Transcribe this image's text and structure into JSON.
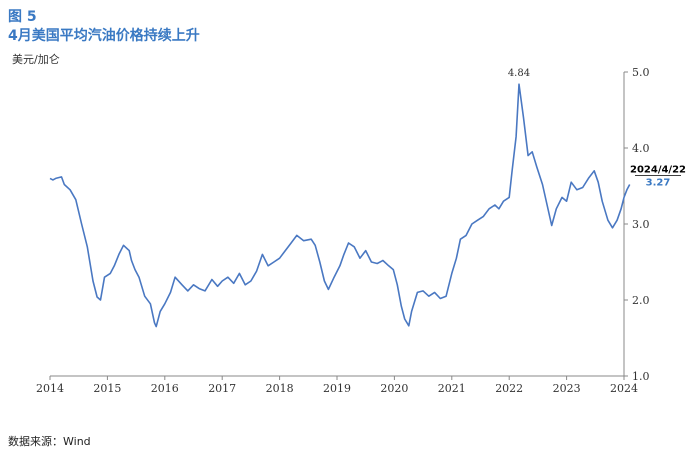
{
  "header": {
    "figure_label": "图 5",
    "title": "4月美国平均汽油价格持续上升",
    "unit": "美元/加仑"
  },
  "footer": {
    "source": "数据来源：Wind"
  },
  "colors": {
    "title": "#3a79c3",
    "line": "#4a78c2",
    "axis": "#888888"
  },
  "chart_data": {
    "type": "line",
    "title": "4月美国平均汽油价格持续上升",
    "xlabel": "",
    "ylabel": "美元/加仑",
    "xlim": [
      2014,
      2024
    ],
    "ylim": [
      1.0,
      5.0
    ],
    "x_ticks": [
      "2014",
      "2015",
      "2016",
      "2017",
      "2018",
      "2019",
      "2020",
      "2021",
      "2022",
      "2023",
      "2024"
    ],
    "y_ticks": [
      "1.0",
      "2.0",
      "3.0",
      "4.0",
      "5.0"
    ],
    "y_axis_position": "right",
    "grid": false,
    "legend": "none",
    "annotations": [
      {
        "text": "4.84",
        "x": 2022.17,
        "y": 4.84
      },
      {
        "date": "2024/4/22",
        "value": "3.27"
      }
    ],
    "series": [
      {
        "values": [
          [
            2014.0,
            3.6
          ],
          [
            2014.05,
            3.58
          ],
          [
            2014.1,
            3.6
          ],
          [
            2014.2,
            3.62
          ],
          [
            2014.25,
            3.52
          ],
          [
            2014.35,
            3.45
          ],
          [
            2014.45,
            3.32
          ],
          [
            2014.55,
            3.0
          ],
          [
            2014.65,
            2.7
          ],
          [
            2014.75,
            2.25
          ],
          [
            2014.82,
            2.04
          ],
          [
            2014.88,
            2.0
          ],
          [
            2014.95,
            2.3
          ],
          [
            2015.05,
            2.35
          ],
          [
            2015.12,
            2.45
          ],
          [
            2015.2,
            2.6
          ],
          [
            2015.28,
            2.72
          ],
          [
            2015.38,
            2.65
          ],
          [
            2015.42,
            2.52
          ],
          [
            2015.48,
            2.4
          ],
          [
            2015.55,
            2.3
          ],
          [
            2015.65,
            2.05
          ],
          [
            2015.75,
            1.95
          ],
          [
            2015.82,
            1.7
          ],
          [
            2015.85,
            1.65
          ],
          [
            2015.92,
            1.85
          ],
          [
            2016.0,
            1.95
          ],
          [
            2016.1,
            2.1
          ],
          [
            2016.18,
            2.3
          ],
          [
            2016.3,
            2.2
          ],
          [
            2016.4,
            2.12
          ],
          [
            2016.5,
            2.2
          ],
          [
            2016.6,
            2.15
          ],
          [
            2016.7,
            2.12
          ],
          [
            2016.82,
            2.27
          ],
          [
            2016.92,
            2.18
          ],
          [
            2017.0,
            2.25
          ],
          [
            2017.1,
            2.3
          ],
          [
            2017.2,
            2.22
          ],
          [
            2017.3,
            2.35
          ],
          [
            2017.4,
            2.2
          ],
          [
            2017.5,
            2.25
          ],
          [
            2017.6,
            2.38
          ],
          [
            2017.7,
            2.6
          ],
          [
            2017.8,
            2.45
          ],
          [
            2017.9,
            2.5
          ],
          [
            2018.0,
            2.55
          ],
          [
            2018.1,
            2.65
          ],
          [
            2018.2,
            2.75
          ],
          [
            2018.3,
            2.85
          ],
          [
            2018.42,
            2.78
          ],
          [
            2018.55,
            2.8
          ],
          [
            2018.62,
            2.72
          ],
          [
            2018.7,
            2.5
          ],
          [
            2018.78,
            2.25
          ],
          [
            2018.85,
            2.14
          ],
          [
            2018.95,
            2.3
          ],
          [
            2019.05,
            2.45
          ],
          [
            2019.12,
            2.6
          ],
          [
            2019.2,
            2.75
          ],
          [
            2019.3,
            2.7
          ],
          [
            2019.4,
            2.55
          ],
          [
            2019.5,
            2.65
          ],
          [
            2019.6,
            2.5
          ],
          [
            2019.7,
            2.48
          ],
          [
            2019.8,
            2.52
          ],
          [
            2019.9,
            2.45
          ],
          [
            2019.98,
            2.4
          ],
          [
            2020.05,
            2.2
          ],
          [
            2020.12,
            1.92
          ],
          [
            2020.18,
            1.75
          ],
          [
            2020.25,
            1.66
          ],
          [
            2020.3,
            1.85
          ],
          [
            2020.4,
            2.1
          ],
          [
            2020.5,
            2.12
          ],
          [
            2020.6,
            2.05
          ],
          [
            2020.7,
            2.1
          ],
          [
            2020.8,
            2.02
          ],
          [
            2020.9,
            2.05
          ],
          [
            2021.0,
            2.35
          ],
          [
            2021.08,
            2.55
          ],
          [
            2021.15,
            2.8
          ],
          [
            2021.25,
            2.85
          ],
          [
            2021.35,
            3.0
          ],
          [
            2021.45,
            3.05
          ],
          [
            2021.55,
            3.1
          ],
          [
            2021.65,
            3.2
          ],
          [
            2021.75,
            3.25
          ],
          [
            2021.82,
            3.2
          ],
          [
            2021.9,
            3.3
          ],
          [
            2022.0,
            3.35
          ],
          [
            2022.05,
            3.7
          ],
          [
            2022.12,
            4.15
          ],
          [
            2022.17,
            4.84
          ],
          [
            2022.25,
            4.4
          ],
          [
            2022.33,
            3.9
          ],
          [
            2022.4,
            3.95
          ],
          [
            2022.48,
            3.75
          ],
          [
            2022.58,
            3.52
          ],
          [
            2022.66,
            3.25
          ],
          [
            2022.74,
            2.98
          ],
          [
            2022.82,
            3.2
          ],
          [
            2022.92,
            3.35
          ],
          [
            2023.0,
            3.3
          ],
          [
            2023.08,
            3.55
          ],
          [
            2023.18,
            3.45
          ],
          [
            2023.28,
            3.48
          ],
          [
            2023.38,
            3.6
          ],
          [
            2023.48,
            3.7
          ],
          [
            2023.55,
            3.55
          ],
          [
            2023.62,
            3.3
          ],
          [
            2023.72,
            3.05
          ],
          [
            2023.8,
            2.95
          ],
          [
            2023.88,
            3.05
          ],
          [
            2023.95,
            3.2
          ],
          [
            2024.0,
            3.35
          ],
          [
            2024.05,
            3.45
          ],
          [
            2024.1,
            3.52
          ]
        ]
      }
    ]
  }
}
